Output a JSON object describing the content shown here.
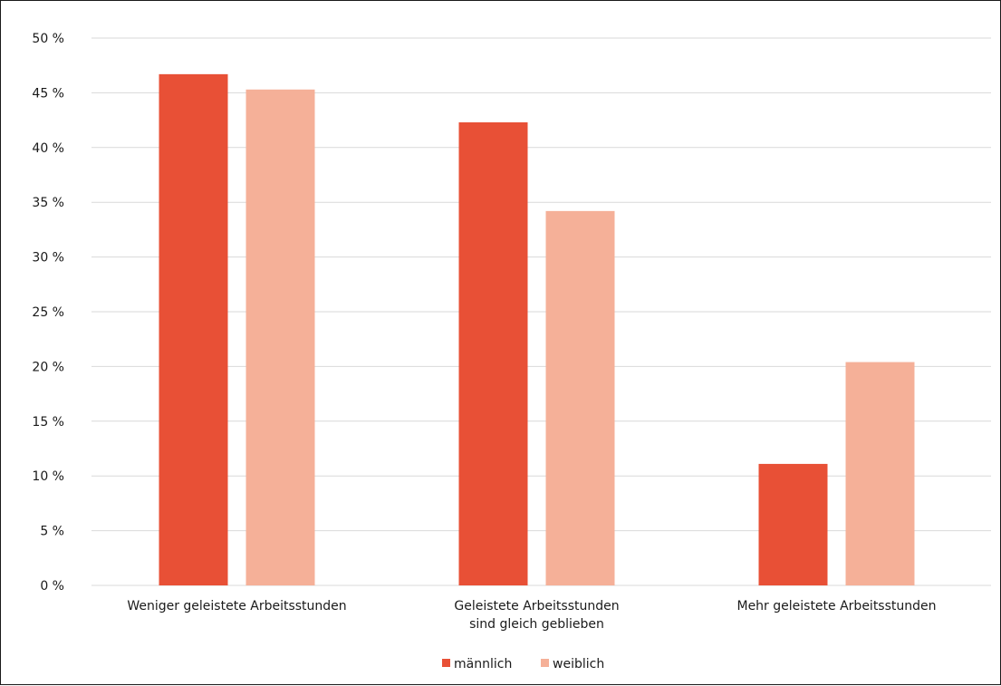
{
  "chart_data": {
    "type": "bar",
    "categories": [
      [
        "Weniger geleistete Arbeitsstunden"
      ],
      [
        "Geleistete Arbeitsstunden",
        "sind gleich geblieben"
      ],
      [
        "Mehr geleistete Arbeitsstunden"
      ]
    ],
    "series": [
      {
        "name": "männlich",
        "values": [
          46.7,
          42.3,
          11.1
        ],
        "color": "#e85036"
      },
      {
        "name": "weiblich",
        "values": [
          45.3,
          34.2,
          20.4
        ],
        "color": "#f5b098"
      }
    ],
    "ylim": [
      0,
      50
    ],
    "yticks": [
      0,
      5,
      10,
      15,
      20,
      25,
      30,
      35,
      40,
      45,
      50
    ],
    "ytick_suffix": " %",
    "grid": true,
    "legend_position": "bottom-center"
  }
}
